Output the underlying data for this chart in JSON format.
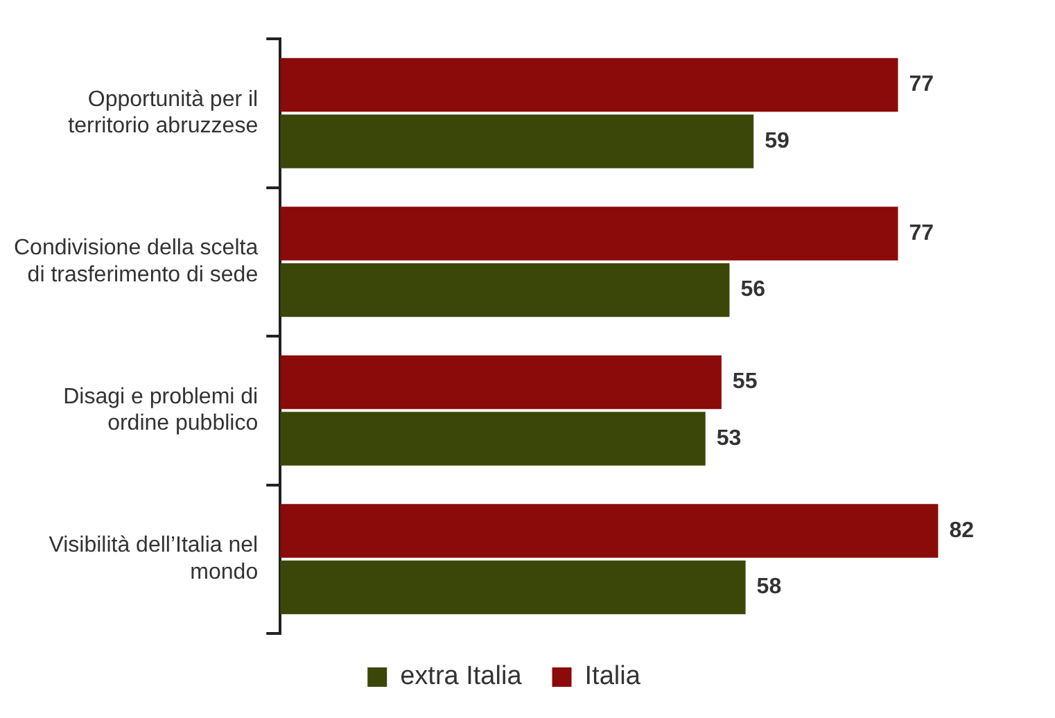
{
  "chart_data": {
    "type": "bar",
    "orientation": "horizontal",
    "categories": [
      "Opportunità per il territorio abruzzese",
      "Condivisione della scelta di trasferimento di sede",
      "Disagi e problemi di ordine pubblico",
      "Visibilità dell’Italia nel mondo"
    ],
    "series": [
      {
        "name": "Italia",
        "color": "#8b0a0a",
        "values": [
          77,
          77,
          55,
          82
        ]
      },
      {
        "name": "extra Italia",
        "color": "#3a4708",
        "values": [
          59,
          56,
          53,
          58
        ]
      }
    ],
    "tick_labels": "y",
    "data_labels": true,
    "legend": "bottom",
    "grid": false
  }
}
